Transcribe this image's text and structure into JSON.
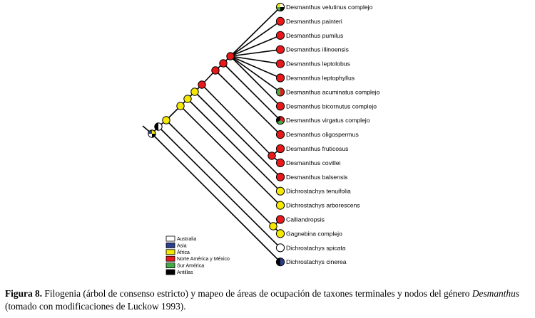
{
  "taxa": [
    {
      "name": "Desmanthus velutinus complejo",
      "colors": [
        "#ffffff",
        "#000000",
        "#44aa44",
        "#f5e900"
      ]
    },
    {
      "name": "Desmanthus painteri",
      "colors": [
        "#e8181b"
      ]
    },
    {
      "name": "Desmanthus pumilus",
      "colors": [
        "#e8181b"
      ]
    },
    {
      "name": "Desmanthus illinoensis",
      "colors": [
        "#e8181b"
      ]
    },
    {
      "name": "Desmanthus leptolobus",
      "colors": [
        "#e8181b"
      ]
    },
    {
      "name": "Desmanthus leptophyllus",
      "colors": [
        "#e8181b"
      ]
    },
    {
      "name": "Desmanthus acuminatus complejo",
      "colors": [
        "#e8181b",
        "#44aa44"
      ]
    },
    {
      "name": "Desmanthus bicornutus complejo",
      "colors": [
        "#e8181b"
      ]
    },
    {
      "name": "Desmanthus virgatus complejo",
      "colors": [
        "#e8181b",
        "#44aa44",
        "#000000"
      ]
    },
    {
      "name": "Desmanthus oligospermus",
      "colors": [
        "#e8181b"
      ]
    },
    {
      "name": "Desmanthus fruticosus",
      "colors": [
        "#e8181b"
      ]
    },
    {
      "name": "Desmanthus covillei",
      "colors": [
        "#e8181b"
      ]
    },
    {
      "name": "Desmanthus balsensis",
      "colors": [
        "#e8181b"
      ]
    },
    {
      "name": "Dichrostachys tenuifolia",
      "colors": [
        "#f5e900"
      ]
    },
    {
      "name": "Dichrostachys arborescens",
      "colors": [
        "#f5e900"
      ]
    },
    {
      "name": "Calliandropsis",
      "colors": [
        "#e8181b"
      ]
    },
    {
      "name": "Gagnebina complejo",
      "colors": [
        "#f5e900"
      ]
    },
    {
      "name": "Dichrostachys spicata",
      "colors": [
        "#ffffff"
      ]
    },
    {
      "name": "Dichrostachys cinerea",
      "colors": [
        "#2b3f8f",
        "#000000"
      ]
    }
  ],
  "legend": [
    {
      "label": "Australia",
      "color": "#ffffff"
    },
    {
      "label": "Asia",
      "color": "#2b3f8f"
    },
    {
      "label": "África",
      "color": "#f5e900"
    },
    {
      "label": "Norte América y México",
      "color": "#e8181b"
    },
    {
      "label": "Sur América",
      "color": "#44aa44"
    },
    {
      "label": "Antillas",
      "color": "#000000"
    }
  ],
  "caption": {
    "label": "Figura 8.",
    "text": " Filogenia (árbol de consenso estricto) y mapeo de áreas de ocupación de taxones terminales y nodos del género ",
    "genus": "Desmanthus",
    "text2": " (tomado con modificaciones de Luckow 1993)."
  },
  "colors": {
    "red": "#e8181b",
    "yellow": "#f5e900",
    "green": "#44aa44",
    "blue": "#2b3f8f",
    "black": "#000000",
    "white": "#ffffff"
  }
}
